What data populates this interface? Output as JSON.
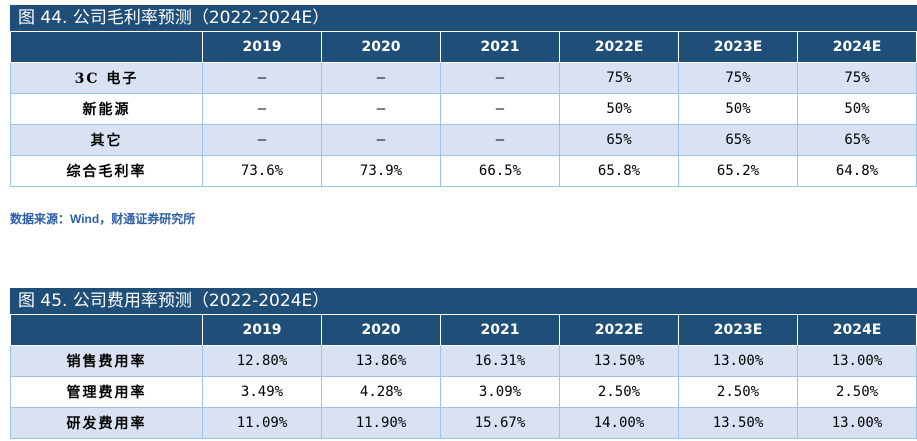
{
  "gross_margin_table": {
    "title": "图 44. 公司毛利率预测（2022-2024E）",
    "columns": [
      "",
      "2019",
      "2020",
      "2021",
      "2022E",
      "2023E",
      "2024E"
    ],
    "rows": [
      {
        "label": "3C 电子",
        "values": [
          "–",
          "–",
          "–",
          "75%",
          "75%",
          "75%"
        ]
      },
      {
        "label": "新能源",
        "values": [
          "–",
          "–",
          "–",
          "50%",
          "50%",
          "50%"
        ]
      },
      {
        "label": "其它",
        "values": [
          "–",
          "–",
          "–",
          "65%",
          "65%",
          "65%"
        ]
      },
      {
        "label": "综合毛利率",
        "values": [
          "73.6%",
          "73.9%",
          "66.5%",
          "65.8%",
          "65.2%",
          "64.8%"
        ]
      }
    ],
    "source": "数据来源：Wind，财通证券研究所"
  },
  "expense_ratio_table": {
    "title": "图 45. 公司费用率预测（2022-2024E）",
    "columns": [
      "",
      "2019",
      "2020",
      "2021",
      "2022E",
      "2023E",
      "2024E"
    ],
    "rows": [
      {
        "label": "销售费用率",
        "values": [
          "12.80%",
          "13.86%",
          "16.31%",
          "13.50%",
          "13.00%",
          "13.00%"
        ]
      },
      {
        "label": "管理费用率",
        "values": [
          "3.49%",
          "4.28%",
          "3.09%",
          "2.50%",
          "2.50%",
          "2.50%"
        ]
      },
      {
        "label": "研发费用率",
        "values": [
          "11.09%",
          "11.90%",
          "15.67%",
          "14.00%",
          "13.50%",
          "13.00%"
        ]
      }
    ]
  },
  "colors": {
    "header_bg": "#1f4e79",
    "row_shade": "#d9e2f3",
    "border": "#9dc3e6",
    "source_text": "#2e5ea8"
  }
}
